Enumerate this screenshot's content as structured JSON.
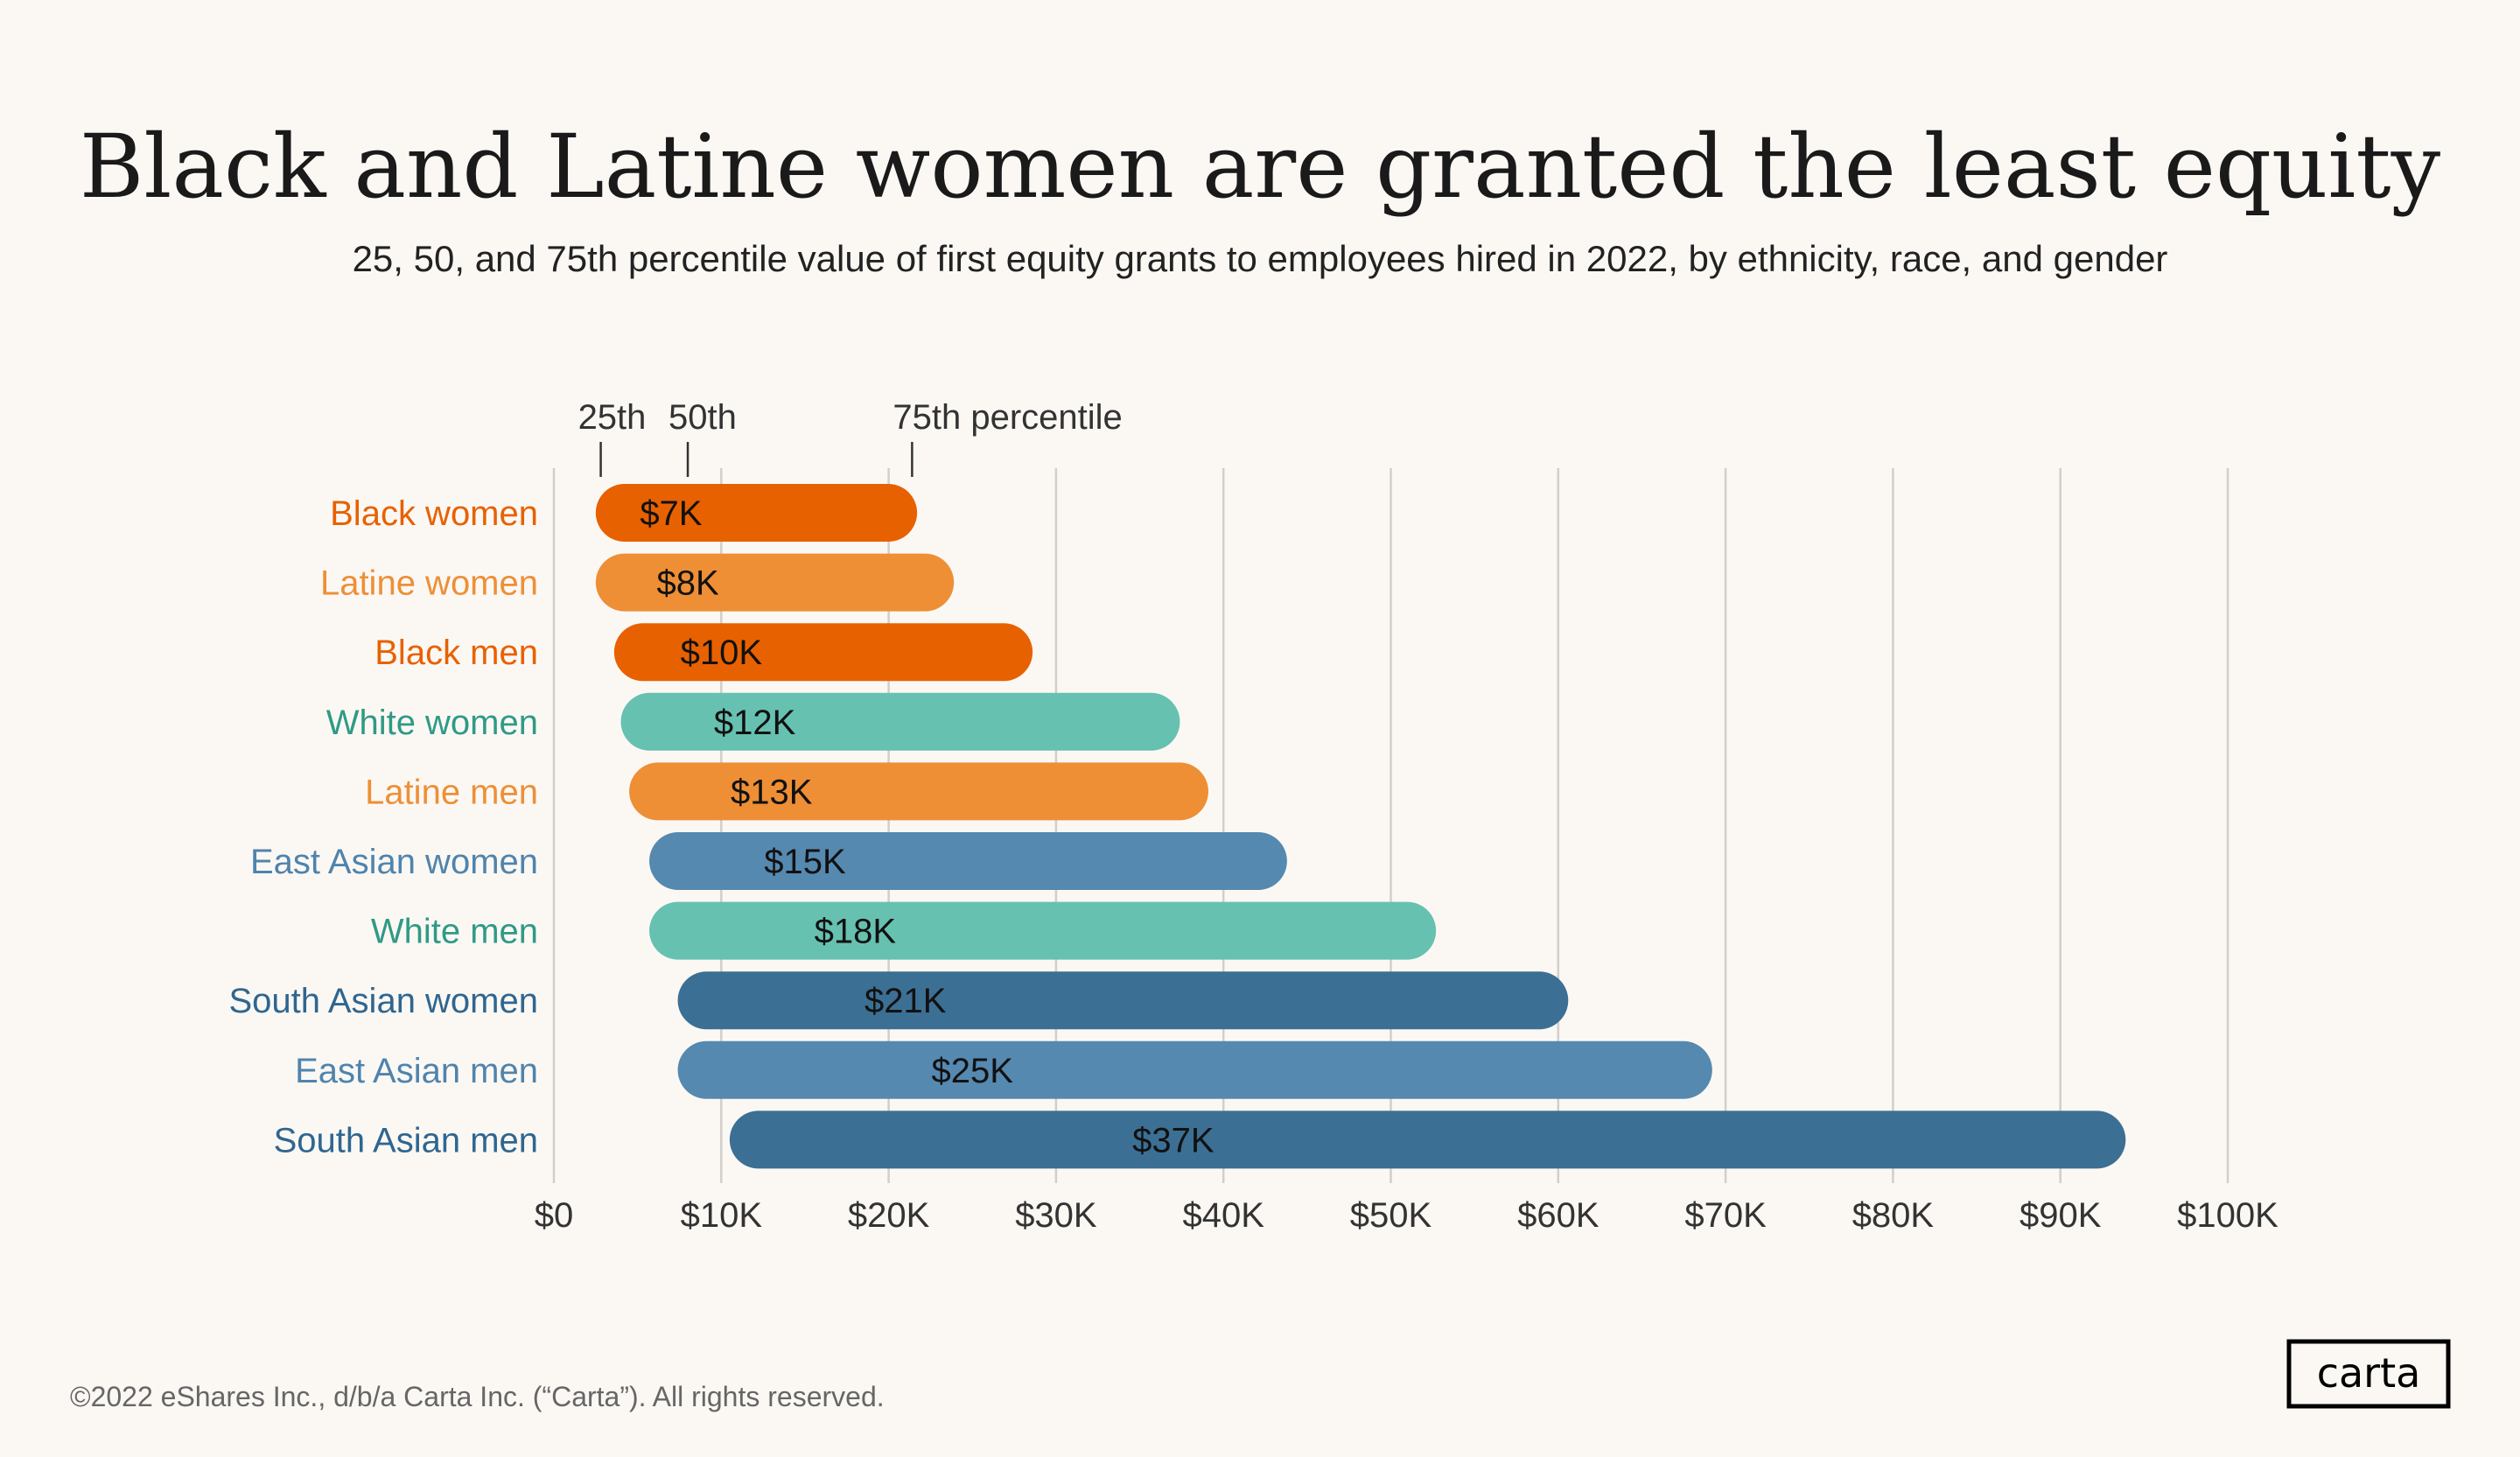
{
  "chart_data": {
    "type": "bar",
    "subtype": "range-pill",
    "title": "Black and Latine women are granted the least equity",
    "subtitle": "25, 50, and 75th percentile value of first equity grants to employees hired in 2022, by ethnicity, race, and gender",
    "xlabel": "",
    "ylabel": "",
    "xlim": [
      0,
      100
    ],
    "unit": "$K",
    "x_ticks": [
      "$0",
      "$10K",
      "$20K",
      "$30K",
      "$40K",
      "$50K",
      "$60K",
      "$70K",
      "$80K",
      "$90K",
      "$100K"
    ],
    "grid": "vertical",
    "legend_annotation": {
      "p25": "25th",
      "p50": "50th",
      "p75": "75th percentile",
      "p25_value": 2.8,
      "p50_value": 8.0,
      "p75_value": 21.4
    },
    "categories": [
      "Black women",
      "Latine women",
      "Black men",
      "White women",
      "Latine men",
      "East Asian women",
      "White men",
      "South Asian women",
      "East Asian men",
      "South Asian men"
    ],
    "p25": [
      2.5,
      2.5,
      3.6,
      4.0,
      4.5,
      5.7,
      5.7,
      7.4,
      7.4,
      10.5
    ],
    "median": [
      7,
      8,
      10,
      12,
      13,
      15,
      18,
      21,
      25,
      37
    ],
    "median_labels": [
      "$7K",
      "$8K",
      "$10K",
      "$12K",
      "$13K",
      "$15K",
      "$18K",
      "$21K",
      "$25K",
      "$37K"
    ],
    "p75": [
      21.7,
      23.9,
      28.6,
      37.4,
      39.1,
      43.8,
      52.7,
      60.6,
      69.2,
      93.9
    ],
    "group": [
      "black",
      "latine",
      "black",
      "white",
      "latine",
      "eastasian",
      "white",
      "southasian",
      "eastasian",
      "southasian"
    ]
  },
  "colors": {
    "black": {
      "bar": "#E86100",
      "text": "#E86100"
    },
    "latine": {
      "bar": "#EE8F36",
      "text": "#EE8F36"
    },
    "white": {
      "bar": "#66C1B0",
      "text": "#2F9A86"
    },
    "eastasian": {
      "bar": "#5589B0",
      "text": "#4F84AD"
    },
    "southasian": {
      "bar": "#3C6F94",
      "text": "#2F6690"
    },
    "grid": "#D2CFCB",
    "background": "#FBF8F4"
  },
  "footer": {
    "copyright": "©2022 eShares Inc., d/b/a Carta Inc. (“Carta”). All rights reserved.",
    "logo": "carta"
  }
}
